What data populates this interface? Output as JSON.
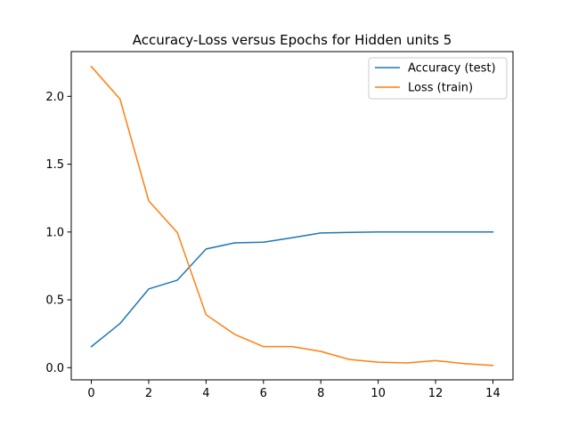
{
  "chart_data": {
    "type": "line",
    "title": "Accuracy-Loss versus Epochs for Hidden units 5",
    "xlabel": "",
    "ylabel": "",
    "xlim": [
      -0.7,
      14.7
    ],
    "ylim": [
      -0.09,
      2.33
    ],
    "xticks": [
      0,
      2,
      4,
      6,
      8,
      10,
      12,
      14
    ],
    "xtick_labels": [
      "0",
      "2",
      "4",
      "6",
      "8",
      "10",
      "12",
      "14"
    ],
    "yticks": [
      0.0,
      0.5,
      1.0,
      1.5,
      2.0
    ],
    "ytick_labels": [
      "0.0",
      "0.5",
      "1.0",
      "1.5",
      "2.0"
    ],
    "grid": false,
    "legend_position": "top-right",
    "x": [
      0,
      1,
      2,
      3,
      4,
      5,
      6,
      7,
      8,
      9,
      10,
      11,
      12,
      13,
      14
    ],
    "series": [
      {
        "name": "Accuracy (test)",
        "color": "#1f77b4",
        "values": [
          0.155,
          0.325,
          0.58,
          0.645,
          0.875,
          0.92,
          0.925,
          0.958,
          0.993,
          0.997,
          1.0,
          1.0,
          1.0,
          1.0,
          1.0
        ]
      },
      {
        "name": "Loss (train)",
        "color": "#ff7f0e",
        "values": [
          2.22,
          1.98,
          1.23,
          0.995,
          0.39,
          0.245,
          0.155,
          0.155,
          0.12,
          0.06,
          0.04,
          0.035,
          0.052,
          0.03,
          0.016
        ]
      }
    ]
  }
}
